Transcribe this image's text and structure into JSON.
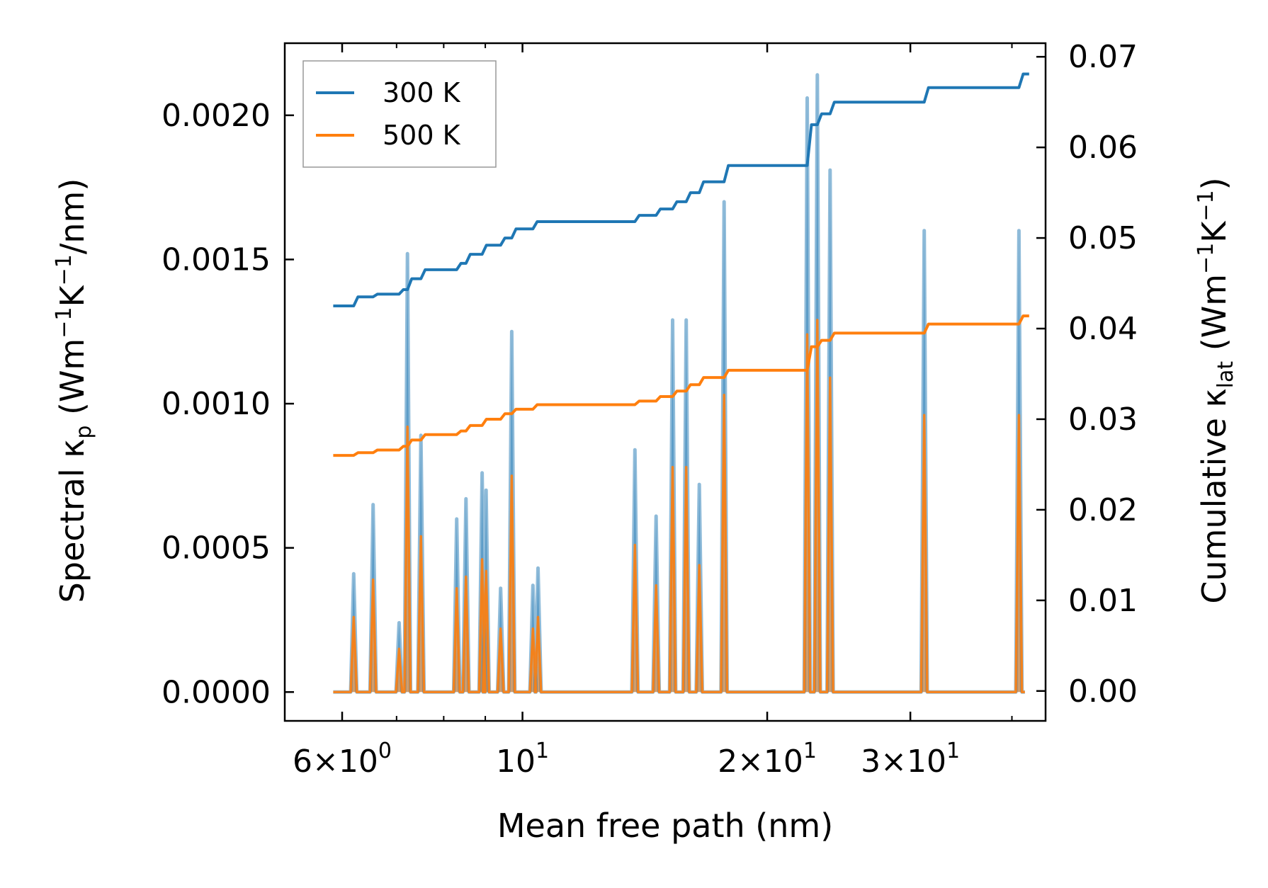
{
  "chart_data": {
    "type": "line",
    "xlabel": "Mean free path (nm)",
    "xscale": "log",
    "xlim": [
      5.1,
      44.0
    ],
    "x_ticks": [
      {
        "value": 6,
        "mantissa": "6",
        "exp": "0"
      },
      {
        "value": 10,
        "mantissa": "",
        "exp": "1"
      },
      {
        "value": 20,
        "mantissa": "2",
        "exp": "1"
      },
      {
        "value": 30,
        "mantissa": "3",
        "exp": "1"
      }
    ],
    "x_minor_ticks": [
      7,
      8,
      9,
      40
    ],
    "ylabel_left": {
      "base": "Spectral κ",
      "sub": "p",
      "units_a": " (Wm",
      "sup1": "−1",
      "units_b": "K",
      "sup2": "−1",
      "units_c": "/nm)"
    },
    "ylim_left": [
      -0.0001,
      0.00225
    ],
    "y_ticks_left": [
      "0.0000",
      "0.0005",
      "0.0010",
      "0.0015",
      "0.0020"
    ],
    "ylabel_right": {
      "base": "Cumulative κ",
      "sub": "lat",
      "units_a": " (Wm",
      "sup1": "−1",
      "units_b": "K",
      "sup2": "−1",
      "units_c": ")"
    },
    "ylim_right": [
      -0.0033,
      0.0715
    ],
    "y_ticks_right": [
      "0.00",
      "0.01",
      "0.02",
      "0.03",
      "0.04",
      "0.05",
      "0.06",
      "0.07"
    ],
    "legend": {
      "position": "top-left",
      "entries": [
        {
          "label": "300 K",
          "color": "#1f77b4"
        },
        {
          "label": "500 K",
          "color": "#ff7f0e"
        }
      ]
    },
    "spectral_series": [
      {
        "name": "300 K",
        "color": "#1f77b4",
        "fill": "#1f77b4",
        "peaks": [
          [
            6.2,
            0.00041
          ],
          [
            6.55,
            0.00065
          ],
          [
            7.05,
            0.00024
          ],
          [
            7.22,
            0.00152
          ],
          [
            7.5,
            0.00089
          ],
          [
            8.3,
            0.0006
          ],
          [
            8.52,
            0.00067
          ],
          [
            8.92,
            0.00076
          ],
          [
            9.02,
            0.0007
          ],
          [
            9.4,
            0.00036
          ],
          [
            9.7,
            0.00125
          ],
          [
            10.3,
            0.00037
          ],
          [
            10.45,
            0.00043
          ],
          [
            13.75,
            0.00084
          ],
          [
            14.6,
            0.00061
          ],
          [
            15.3,
            0.00129
          ],
          [
            15.9,
            0.00129
          ],
          [
            16.5,
            0.00072
          ],
          [
            17.7,
            0.0017
          ],
          [
            22.4,
            0.00206
          ],
          [
            23.05,
            0.00214
          ],
          [
            23.9,
            0.00181
          ],
          [
            31.2,
            0.0016
          ],
          [
            40.8,
            0.0016
          ]
        ]
      },
      {
        "name": "500 K",
        "color": "#ff7f0e",
        "fill": "#ff7f0e",
        "peaks": [
          [
            6.2,
            0.00026
          ],
          [
            6.55,
            0.00039
          ],
          [
            7.05,
            0.00015
          ],
          [
            7.22,
            0.00092
          ],
          [
            7.5,
            0.00054
          ],
          [
            8.3,
            0.00036
          ],
          [
            8.52,
            0.0004
          ],
          [
            8.92,
            0.00046
          ],
          [
            9.02,
            0.00042
          ],
          [
            9.4,
            0.00022
          ],
          [
            9.7,
            0.00075
          ],
          [
            10.3,
            0.00022
          ],
          [
            10.45,
            0.00026
          ],
          [
            13.75,
            0.00051
          ],
          [
            14.6,
            0.00037
          ],
          [
            15.3,
            0.00078
          ],
          [
            15.9,
            0.00078
          ],
          [
            16.5,
            0.00044
          ],
          [
            17.7,
            0.00103
          ],
          [
            22.4,
            0.00124
          ],
          [
            23.05,
            0.00129
          ],
          [
            23.9,
            0.00109
          ],
          [
            31.2,
            0.00096
          ],
          [
            40.8,
            0.00096
          ]
        ]
      }
    ],
    "cumulative_series": [
      {
        "name": "300 K",
        "color": "#1f77b4",
        "steps": [
          [
            5.85,
            0.0425
          ],
          [
            6.2,
            0.0435
          ],
          [
            6.55,
            0.0438
          ],
          [
            7.05,
            0.0443
          ],
          [
            7.22,
            0.0455
          ],
          [
            7.5,
            0.0465
          ],
          [
            8.3,
            0.0472
          ],
          [
            8.52,
            0.0482
          ],
          [
            8.92,
            0.0492
          ],
          [
            9.4,
            0.05
          ],
          [
            9.7,
            0.051
          ],
          [
            10.3,
            0.0518
          ],
          [
            13.75,
            0.0525
          ],
          [
            14.6,
            0.0532
          ],
          [
            15.3,
            0.054
          ],
          [
            15.9,
            0.055
          ],
          [
            16.5,
            0.0562
          ],
          [
            17.7,
            0.058
          ],
          [
            22.4,
            0.0625
          ],
          [
            23.05,
            0.0637
          ],
          [
            23.9,
            0.065
          ],
          [
            31.2,
            0.0666
          ],
          [
            40.8,
            0.0681
          ],
          [
            41.5,
            0.0681
          ]
        ]
      },
      {
        "name": "500 K",
        "color": "#ff7f0e",
        "steps": [
          [
            5.85,
            0.026
          ],
          [
            6.2,
            0.0263
          ],
          [
            6.55,
            0.0266
          ],
          [
            7.05,
            0.027
          ],
          [
            7.22,
            0.0277
          ],
          [
            7.5,
            0.0283
          ],
          [
            8.3,
            0.0287
          ],
          [
            8.52,
            0.0293
          ],
          [
            8.92,
            0.03
          ],
          [
            9.4,
            0.0306
          ],
          [
            9.7,
            0.0311
          ],
          [
            10.3,
            0.0316
          ],
          [
            13.75,
            0.032
          ],
          [
            14.6,
            0.0325
          ],
          [
            15.3,
            0.0331
          ],
          [
            15.9,
            0.0338
          ],
          [
            16.5,
            0.0346
          ],
          [
            17.7,
            0.0354
          ],
          [
            22.4,
            0.038
          ],
          [
            23.05,
            0.0387
          ],
          [
            23.9,
            0.0395
          ],
          [
            31.2,
            0.0405
          ],
          [
            40.8,
            0.0414
          ],
          [
            41.5,
            0.0414
          ]
        ]
      }
    ]
  }
}
